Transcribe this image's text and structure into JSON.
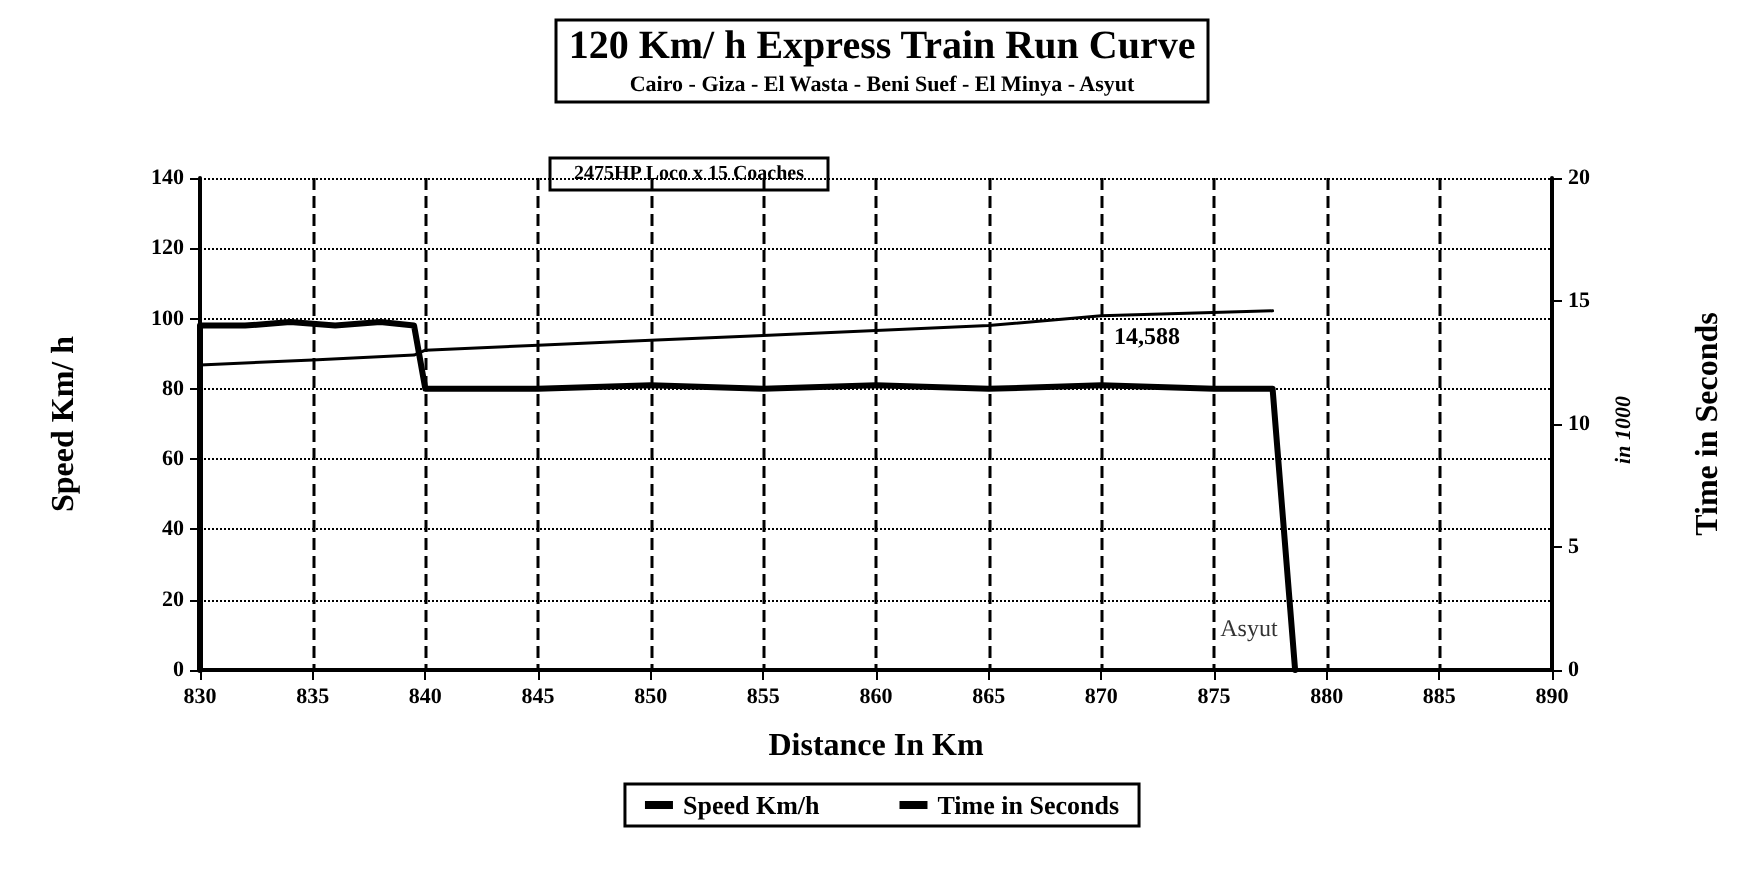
{
  "chart_data": {
    "type": "line",
    "title": "120 Km/ h Express Train Run Curve",
    "subtitle": "Cairo - Giza - El Wasta - Beni Suef - El Minya - Asyut",
    "xlabel": "Distance In Km",
    "ylabel": "Speed Km/ h",
    "y2label": "Time in Seconds",
    "annotations": [
      "2475HP Loco x 15 Coaches",
      "in 1000",
      {
        "text": "Asyut",
        "x": 878,
        "y": 12
      },
      "14,588"
    ],
    "xlim": [
      830,
      890
    ],
    "xticks": [
      830,
      835,
      840,
      845,
      850,
      855,
      860,
      865,
      870,
      875,
      880,
      885,
      890
    ],
    "ylim": [
      0,
      140
    ],
    "yticks": [
      0,
      20,
      40,
      60,
      80,
      100,
      120,
      140
    ],
    "y2lim": [
      0,
      20
    ],
    "y2ticks": [
      0,
      5,
      10,
      15,
      20
    ],
    "grid": true,
    "legend": "bottom",
    "line_style": "solid",
    "series": [
      {
        "name": "Speed Km/h",
        "color": "#000000",
        "x": [
          830,
          830,
          832,
          834,
          836,
          838,
          839.5,
          840,
          845,
          850,
          855,
          860,
          865,
          870,
          875,
          877.6,
          878.6
        ],
        "values": [
          0,
          98,
          98,
          99,
          98,
          99,
          98,
          80,
          80,
          81,
          80,
          81,
          80,
          81,
          80,
          80,
          0
        ]
      },
      {
        "name": "Time in Seconds",
        "color": "#000000",
        "axis": "y2",
        "x": [
          830,
          835,
          839.5,
          840,
          845,
          850,
          855,
          860,
          865,
          870,
          877.6
        ],
        "values": [
          12.4,
          12.6,
          12.8,
          13.0,
          13.2,
          13.4,
          13.6,
          13.8,
          14.0,
          14.4,
          14.6
        ]
      }
    ]
  }
}
